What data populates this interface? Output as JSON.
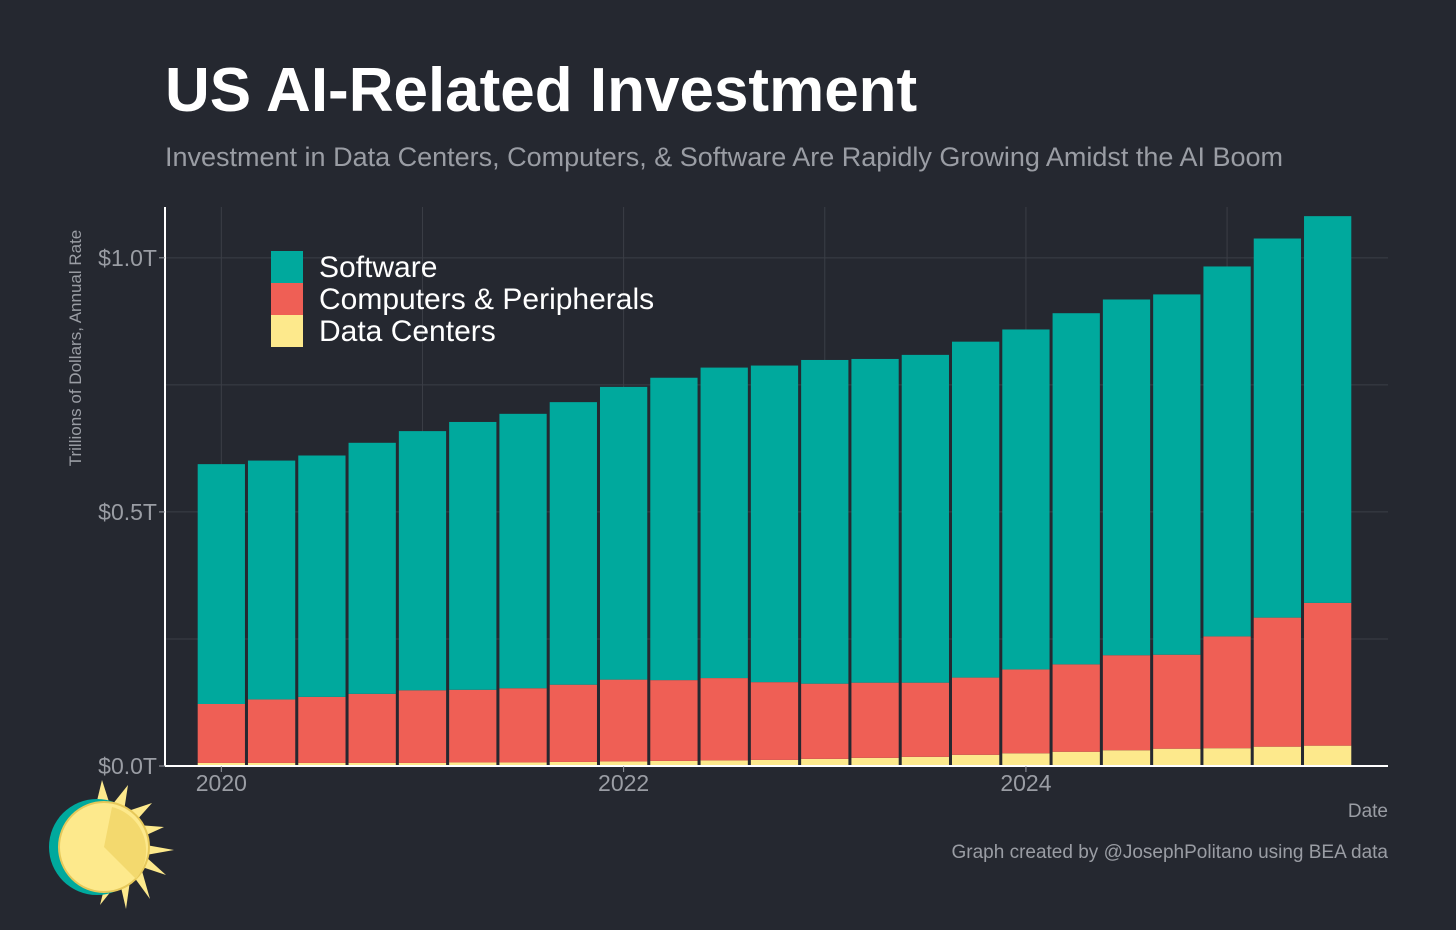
{
  "title": "US AI-Related Investment",
  "subtitle": "Investment in Data Centers, Computers, & Software Are Rapidly Growing Amidst the AI Boom",
  "caption": "Graph created by @JosephPolitano using BEA data",
  "colors": {
    "background": "#252830",
    "grid": "#3b3e46",
    "axis": "#ffffff",
    "tick_text": "#9a9da4",
    "Software": "#00a99d",
    "Computers & Peripherals": "#ef5f55",
    "Data Centers": "#fde98c"
  },
  "chart_data": {
    "type": "bar",
    "stacked": true,
    "xlabel": "Date",
    "ylabel": "Trillions of Dollars, Annual Rate",
    "ylim": [
      0,
      1.1
    ],
    "y_ticks": [
      {
        "value": 0.0,
        "label": "$0.0T"
      },
      {
        "value": 0.5,
        "label": "$0.5T"
      },
      {
        "value": 1.0,
        "label": "$1.0T"
      }
    ],
    "x_ticks": [
      {
        "value": 2020.0,
        "label": "2020"
      },
      {
        "value": 2022.0,
        "label": "2022"
      },
      {
        "value": 2024.0,
        "label": "2024"
      }
    ],
    "xlim": [
      2019.72,
      2025.8
    ],
    "grid": true,
    "legend_position": "top-left",
    "x": [
      2020.0,
      2020.25,
      2020.5,
      2020.75,
      2021.0,
      2021.25,
      2021.5,
      2021.75,
      2022.0,
      2022.25,
      2022.5,
      2022.75,
      2023.0,
      2023.25,
      2023.5,
      2023.75,
      2024.0,
      2024.25,
      2024.5,
      2024.75,
      2025.0,
      2025.25,
      2025.5
    ],
    "series": [
      {
        "name": "Data Centers",
        "values": [
          0.006,
          0.006,
          0.006,
          0.006,
          0.006,
          0.007,
          0.007,
          0.008,
          0.009,
          0.01,
          0.011,
          0.012,
          0.014,
          0.016,
          0.018,
          0.022,
          0.025,
          0.028,
          0.031,
          0.034,
          0.035,
          0.038,
          0.04
        ]
      },
      {
        "name": "Computers & Peripherals",
        "values": [
          0.116,
          0.125,
          0.13,
          0.136,
          0.143,
          0.143,
          0.146,
          0.152,
          0.161,
          0.159,
          0.162,
          0.153,
          0.148,
          0.148,
          0.146,
          0.152,
          0.165,
          0.172,
          0.187,
          0.185,
          0.22,
          0.254,
          0.281
        ]
      },
      {
        "name": "Software",
        "values": [
          0.472,
          0.47,
          0.475,
          0.494,
          0.51,
          0.527,
          0.54,
          0.556,
          0.576,
          0.595,
          0.611,
          0.623,
          0.637,
          0.637,
          0.645,
          0.661,
          0.669,
          0.691,
          0.7,
          0.709,
          0.728,
          0.746,
          0.761
        ]
      }
    ],
    "legend": [
      "Software",
      "Computers & Peripherals",
      "Data Centers"
    ]
  }
}
